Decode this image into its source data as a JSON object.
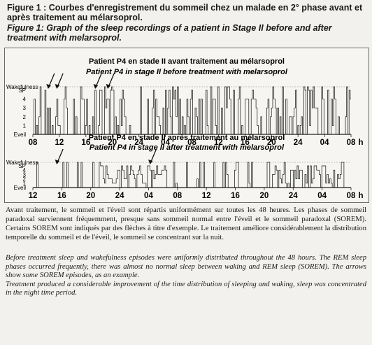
{
  "figure": {
    "caption_fr": "Figure 1 : Courbes d'enregistrement du sommeil chez un malade en 2° phase avant et après traitement au mélarsoprol.",
    "caption_en": "Figure 1: Graph of the sleep recordings of a patient in Stage II before and after treatment with  melarsoprol."
  },
  "chart_data": [
    {
      "type": "hypnogram",
      "title_fr": "Patient P4 en stade II avant traitement au mélarsoprol",
      "title_en": "Patient P4 in stage II before treatment with melarsoprol",
      "y_levels": [
        "Wakefulness",
        "SP",
        "4",
        "3",
        "2",
        "1",
        "Eveil"
      ],
      "x_tick_labels": [
        "08",
        "12",
        "16",
        "20",
        "24",
        "04",
        "08",
        "12",
        "16",
        "20",
        "24",
        "04",
        "08"
      ],
      "x_unit": "h",
      "x_hours_start": 8,
      "x_hours_end": 56,
      "sorem_arrow_hours": [
        10.3,
        11.6,
        17.4,
        19.3
      ]
    },
    {
      "type": "hypnogram",
      "title_fr": "Patient P4 en stade II après traitement au mélarsoprol",
      "title_en": "Patient P4 in stage II after treatment with melarsoprol",
      "y_levels": [
        "Wakefulness",
        "SP",
        "4",
        "3",
        "2",
        "1",
        "Eveil"
      ],
      "x_tick_labels": [
        "12",
        "16",
        "20",
        "24",
        "04",
        "08",
        "12",
        "16",
        "20",
        "24",
        "04",
        "08"
      ],
      "x_unit": "h",
      "x_hours_start": 12,
      "x_hours_end": 56,
      "sorem_arrow_hours": [
        15.3,
        28.2
      ]
    }
  ],
  "text": {
    "body_fr": "Avant traitement, le sommeil et l'éveil sont répartis uniformément sur toutes les 48 heures. Les phases de sommeil paradoxal surviennent fréquemment, presque sans sommeil normal entre l'éveil et le sommeil paradoxal (SOREM). Certains SOREM sont indiqués par des flèches à titre d'exemple. Le traitement améliore considérablement la distribution temporelle du sommeil et de l'éveil, le sommeil se concentrant sur la nuit.",
    "body_en_1": "Before treatment sleep and wakefulness episodes were uniformly distributed throughout the 48 hours. The REM sleep phases occurred frequently, there was almost no normal sleep between waking and REM sleep (SOREM). The arrows show some SOREM episodes, as an example.",
    "body_en_2": "Treatment produced a considerable improvement of the time distribution of sleeping and waking, sleep was concentrated in the night time period."
  }
}
